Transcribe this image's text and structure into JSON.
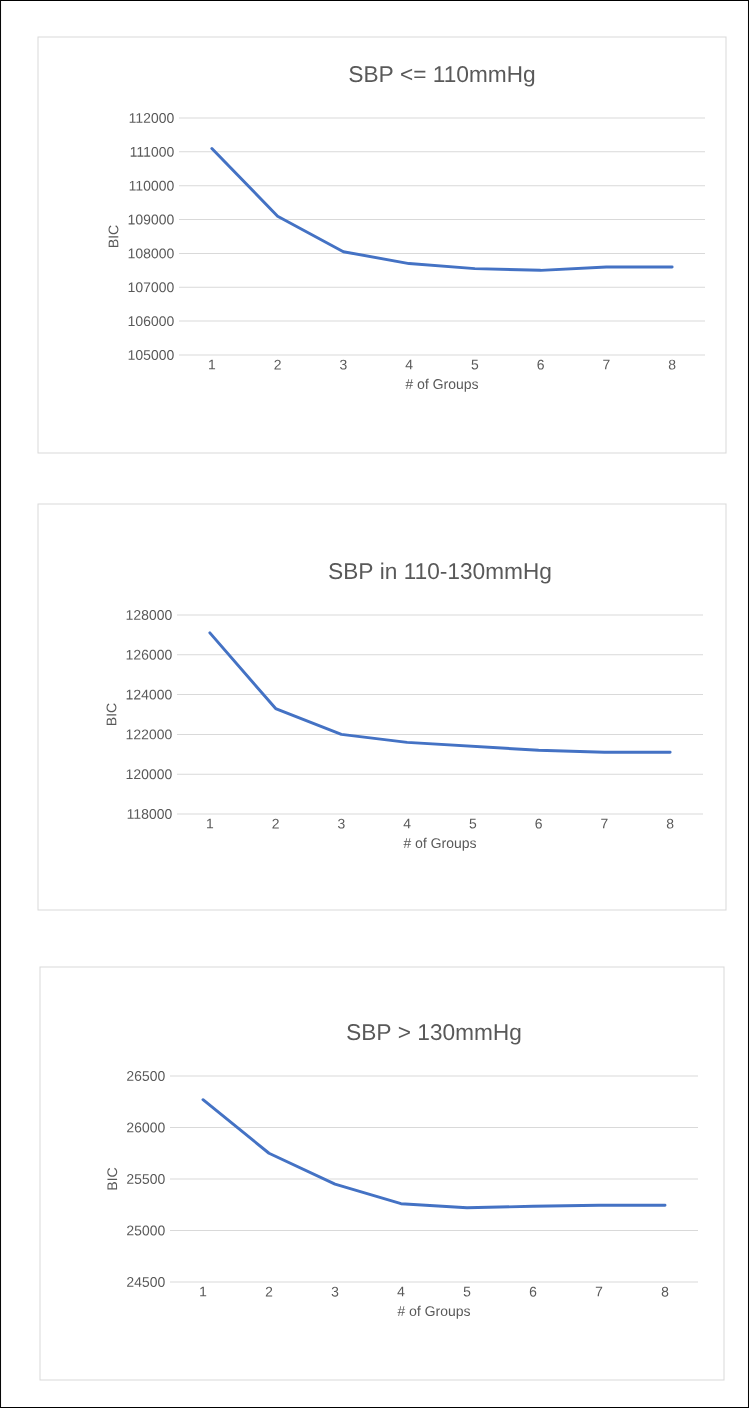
{
  "chart_data": [
    {
      "type": "line",
      "title": "SBP <= 110mmHg",
      "xlabel": "# of Groups",
      "ylabel": "BIC",
      "categories": [
        "1",
        "2",
        "3",
        "4",
        "5",
        "6",
        "7",
        "8"
      ],
      "values": [
        111100,
        109100,
        108050,
        107700,
        107550,
        107500,
        107600,
        107600
      ],
      "color": "#4472c4",
      "ylim": [
        105000,
        112000
      ],
      "yticks": [
        105000,
        106000,
        107000,
        108000,
        109000,
        110000,
        111000,
        112000
      ],
      "grid": "y"
    },
    {
      "type": "line",
      "title": "SBP in 110-130mmHg",
      "xlabel": "# of Groups",
      "ylabel": "BIC",
      "categories": [
        "1",
        "2",
        "3",
        "4",
        "5",
        "6",
        "7",
        "8"
      ],
      "values": [
        127100,
        123300,
        122000,
        121600,
        121400,
        121200,
        121100,
        121100
      ],
      "color": "#4472c4",
      "ylim": [
        118000,
        128000
      ],
      "yticks": [
        118000,
        120000,
        122000,
        124000,
        126000,
        128000
      ],
      "grid": "y"
    },
    {
      "type": "line",
      "title": "SBP > 130mmHg",
      "xlabel": "# of Groups",
      "ylabel": "BIC",
      "categories": [
        "1",
        "2",
        "3",
        "4",
        "5",
        "6",
        "7",
        "8"
      ],
      "values": [
        26270,
        25750,
        25450,
        25260,
        25220,
        25235,
        25245,
        25245
      ],
      "color": "#4472c4",
      "ylim": [
        24500,
        26500
      ],
      "yticks": [
        24500,
        25000,
        25500,
        26000,
        26500
      ],
      "grid": "y"
    }
  ]
}
